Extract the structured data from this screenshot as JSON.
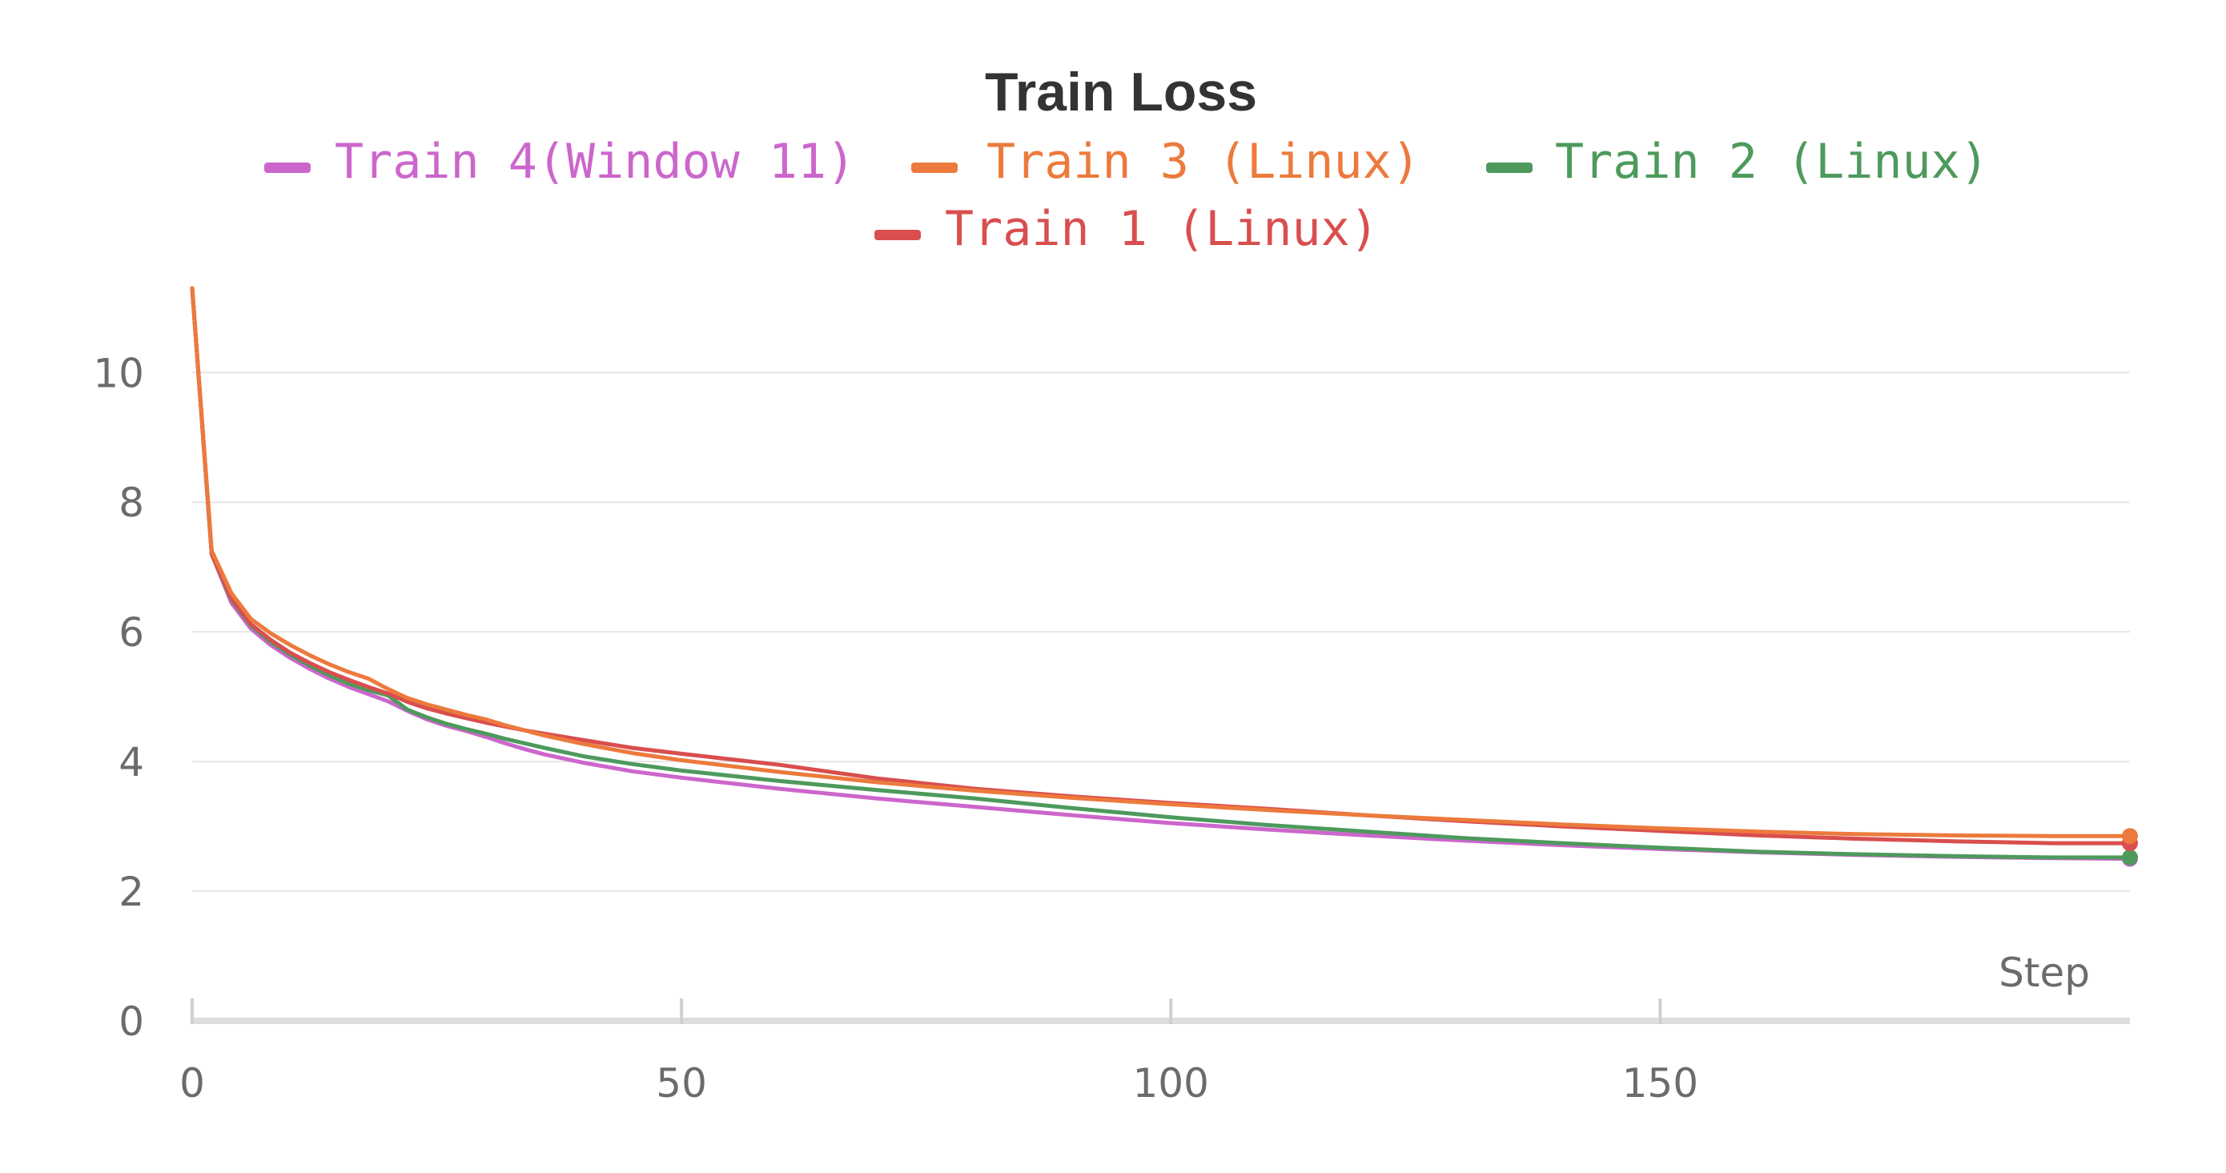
{
  "chart_data": {
    "type": "line",
    "title": "Train Loss",
    "xlabel": "Step",
    "ylabel": "",
    "xlim": [
      0,
      198
    ],
    "ylim": [
      0,
      11.3
    ],
    "x_ticks": [
      0,
      50,
      100,
      150
    ],
    "y_ticks": [
      0,
      2,
      4,
      6,
      8,
      10
    ],
    "grid": true,
    "legend_position": "top-center",
    "series": [
      {
        "name": "Train 4(Window 11)",
        "color": "#cc66cc",
        "x": [
          0,
          2,
          4,
          6,
          8,
          10,
          12,
          14,
          16,
          18,
          20,
          22,
          24,
          26,
          28,
          30,
          32,
          34,
          36,
          40,
          45,
          50,
          60,
          70,
          80,
          90,
          100,
          110,
          120,
          130,
          140,
          150,
          160,
          170,
          180,
          190,
          198
        ],
        "y": [
          11.3,
          7.2,
          6.45,
          6.05,
          5.8,
          5.6,
          5.43,
          5.28,
          5.15,
          5.04,
          4.93,
          4.78,
          4.65,
          4.55,
          4.47,
          4.38,
          4.28,
          4.19,
          4.11,
          3.98,
          3.85,
          3.75,
          3.58,
          3.43,
          3.3,
          3.17,
          3.05,
          2.95,
          2.86,
          2.78,
          2.71,
          2.65,
          2.6,
          2.56,
          2.53,
          2.51,
          2.5
        ]
      },
      {
        "name": "Train 3 (Linux)",
        "color": "#ec7a3c",
        "x": [
          0,
          2,
          4,
          6,
          8,
          10,
          12,
          14,
          16,
          18,
          20,
          22,
          24,
          26,
          28,
          30,
          32,
          34,
          36,
          40,
          45,
          50,
          60,
          70,
          80,
          90,
          100,
          110,
          120,
          130,
          140,
          150,
          160,
          170,
          180,
          190,
          198
        ],
        "y": [
          11.3,
          7.25,
          6.6,
          6.2,
          5.98,
          5.8,
          5.64,
          5.5,
          5.38,
          5.28,
          5.12,
          4.98,
          4.88,
          4.8,
          4.72,
          4.65,
          4.56,
          4.48,
          4.4,
          4.27,
          4.13,
          4.02,
          3.84,
          3.68,
          3.55,
          3.44,
          3.34,
          3.25,
          3.17,
          3.1,
          3.03,
          2.97,
          2.92,
          2.88,
          2.86,
          2.85,
          2.85
        ]
      },
      {
        "name": "Train 2 (Linux)",
        "color": "#4d9a5c",
        "x": [
          0,
          2,
          4,
          6,
          8,
          10,
          12,
          14,
          16,
          18,
          20,
          22,
          24,
          26,
          28,
          30,
          32,
          34,
          36,
          40,
          45,
          50,
          60,
          70,
          80,
          90,
          100,
          110,
          120,
          130,
          140,
          150,
          160,
          170,
          180,
          190,
          198
        ],
        "y": [
          11.3,
          7.2,
          6.5,
          6.1,
          5.85,
          5.65,
          5.48,
          5.33,
          5.2,
          5.1,
          5.02,
          4.8,
          4.68,
          4.58,
          4.5,
          4.43,
          4.35,
          4.28,
          4.21,
          4.08,
          3.96,
          3.86,
          3.7,
          3.56,
          3.43,
          3.28,
          3.14,
          3.02,
          2.92,
          2.82,
          2.74,
          2.67,
          2.61,
          2.57,
          2.54,
          2.52,
          2.52
        ]
      },
      {
        "name": "Train 1 (Linux)",
        "color": "#d94e4e",
        "x": [
          0,
          2,
          4,
          6,
          8,
          10,
          12,
          14,
          16,
          18,
          20,
          22,
          24,
          26,
          28,
          30,
          32,
          34,
          36,
          40,
          45,
          50,
          60,
          70,
          80,
          90,
          100,
          110,
          120,
          130,
          140,
          150,
          160,
          170,
          180,
          190,
          198
        ],
        "y": [
          11.3,
          7.2,
          6.52,
          6.12,
          5.88,
          5.68,
          5.52,
          5.38,
          5.26,
          5.15,
          5.05,
          4.92,
          4.82,
          4.74,
          4.67,
          4.6,
          4.54,
          4.48,
          4.43,
          4.33,
          4.21,
          4.12,
          3.95,
          3.74,
          3.58,
          3.46,
          3.36,
          3.27,
          3.17,
          3.08,
          3.0,
          2.93,
          2.86,
          2.81,
          2.77,
          2.74,
          2.74
        ]
      }
    ]
  }
}
